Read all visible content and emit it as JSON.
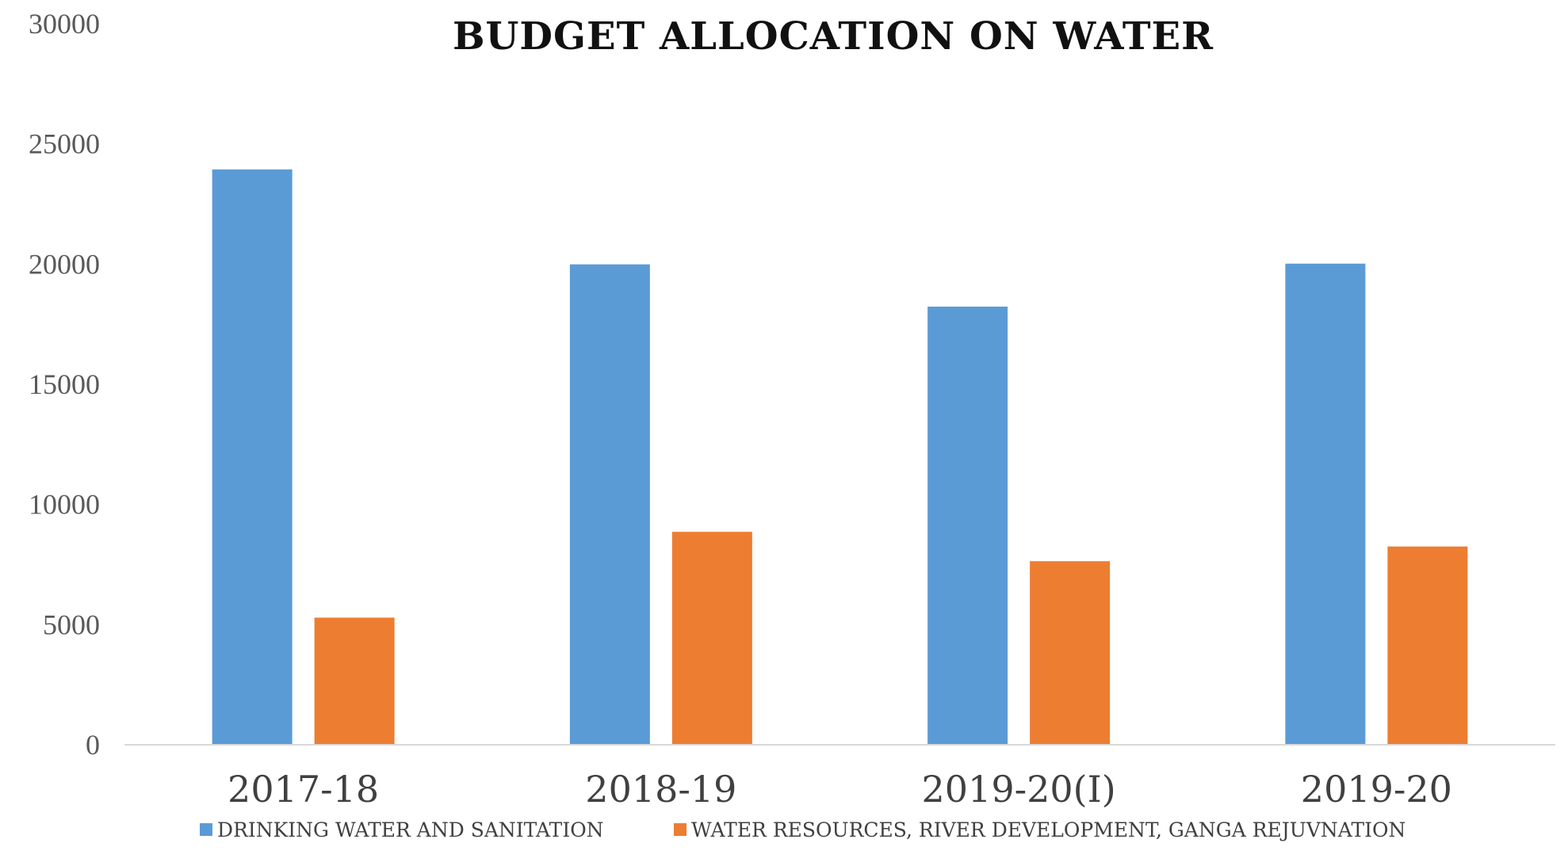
{
  "chart_data": {
    "type": "bar",
    "title": "BUDGET ALLOCATION ON WATER",
    "categories": [
      "2017-18",
      "2018-19",
      "2019-20(I)",
      "2019-20"
    ],
    "series": [
      {
        "name": "DRINKING WATER AND SANITATION",
        "color": "#5B9BD5",
        "values": [
          23940,
          19990,
          18230,
          20020
        ]
      },
      {
        "name": "WATER RESOURCES, RIVER DEVELOPMENT, GANGA REJUVNATION",
        "color": "#ED7D31",
        "values": [
          5290,
          8860,
          7640,
          8250
        ]
      }
    ],
    "y_ticks": [
      "0",
      "5000",
      "10000",
      "15000",
      "20000",
      "25000",
      "30000"
    ],
    "ylim": [
      0,
      30000
    ],
    "grid": false,
    "legend_position": "bottom"
  }
}
